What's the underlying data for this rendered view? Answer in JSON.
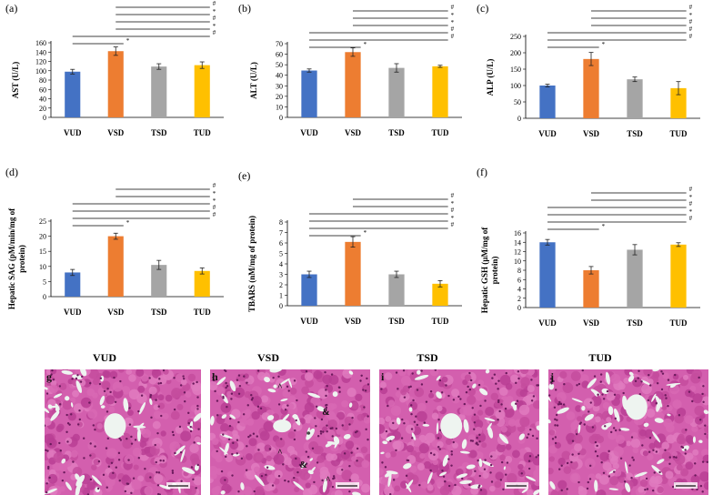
{
  "colors": {
    "VUD": "#4472c4",
    "VSD": "#ed7d31",
    "TSD": "#a5a5a5",
    "TUD": "#ffc000",
    "tissue": "#c2409a",
    "sinusoid": "#eef4f0"
  },
  "chart_data": [
    {
      "type": "bar",
      "panel": "(a)",
      "ylabel": "AST (U/L)",
      "categories": [
        "VUD",
        "VSD",
        "TSD",
        "TUD"
      ],
      "values": [
        98,
        142,
        109,
        112
      ],
      "errors": [
        5,
        9,
        6,
        7
      ],
      "ylim": [
        0,
        160
      ],
      "yticks": [
        "0",
        "20",
        "40",
        "60",
        "80",
        "100",
        "120",
        "140",
        "160"
      ],
      "significance": [
        {
          "from": 2,
          "to": 4,
          "mark": "#"
        },
        {
          "from": 2,
          "to": 4,
          "mark": "*"
        },
        {
          "from": 2,
          "to": 4,
          "mark": "#"
        },
        {
          "from": 2,
          "to": 4,
          "mark": "*"
        },
        {
          "from": 1,
          "to": 4,
          "mark": "#"
        },
        {
          "from": 1,
          "to": 2,
          "mark": "*"
        }
      ]
    },
    {
      "type": "bar",
      "panel": "(b)",
      "ylabel": "ALT (U/L)",
      "categories": [
        "VUD",
        "VSD",
        "TSD",
        "TUD"
      ],
      "values": [
        44.5,
        62,
        47,
        48.5
      ],
      "errors": [
        1.5,
        4,
        4,
        1
      ],
      "ylim": [
        0,
        70
      ],
      "yticks": [
        "0",
        "10",
        "20",
        "30",
        "40",
        "50",
        "60",
        "70"
      ],
      "significance": [
        {
          "from": 2,
          "to": 4,
          "mark": "#"
        },
        {
          "from": 2,
          "to": 4,
          "mark": "*"
        },
        {
          "from": 2,
          "to": 4,
          "mark": "*"
        },
        {
          "from": 1,
          "to": 4,
          "mark": "#"
        },
        {
          "from": 1,
          "to": 4,
          "mark": "#"
        },
        {
          "from": 1,
          "to": 2,
          "mark": "*"
        }
      ]
    },
    {
      "type": "bar",
      "panel": "(c)",
      "ylabel": "ALP (U/L)",
      "categories": [
        "VUD",
        "VSD",
        "TSD",
        "TUD"
      ],
      "values": [
        100,
        181,
        119,
        92
      ],
      "errors": [
        4,
        20,
        7,
        20
      ],
      "ylim": [
        0,
        250
      ],
      "yticks": [
        "0",
        "50",
        "100",
        "150",
        "200",
        "250"
      ],
      "significance": [
        {
          "from": 2,
          "to": 4,
          "mark": "#"
        },
        {
          "from": 2,
          "to": 4,
          "mark": "*"
        },
        {
          "from": 2,
          "to": 4,
          "mark": "#"
        },
        {
          "from": 1,
          "to": 4,
          "mark": "#"
        },
        {
          "from": 1,
          "to": 4,
          "mark": "#"
        },
        {
          "from": 1,
          "to": 2,
          "mark": "*"
        }
      ]
    },
    {
      "type": "bar",
      "panel": "(d)",
      "ylabel": "Hepatic SAG (pM/min/mg of protein)",
      "categories": [
        "VUD",
        "VSD",
        "TSD",
        "TUD"
      ],
      "values": [
        8,
        20,
        10.5,
        8.5
      ],
      "errors": [
        1,
        1,
        1.5,
        1
      ],
      "ylim": [
        0,
        25
      ],
      "yticks": [
        "0",
        "5",
        "10",
        "15",
        "20",
        "25"
      ],
      "significance": [
        {
          "from": 2,
          "to": 4,
          "mark": "#"
        },
        {
          "from": 2,
          "to": 4,
          "mark": "*"
        },
        {
          "from": 1,
          "to": 4,
          "mark": "*"
        },
        {
          "from": 1,
          "to": 4,
          "mark": "#"
        },
        {
          "from": 1,
          "to": 4,
          "mark": "#"
        },
        {
          "from": 1,
          "to": 2,
          "mark": "*"
        }
      ]
    },
    {
      "type": "bar",
      "panel": "(e)",
      "ylabel": "TBARS (nM/mg of protein)",
      "categories": [
        "VUD",
        "VSD",
        "TSD",
        "TUD"
      ],
      "values": [
        3,
        6.1,
        3,
        2.1
      ],
      "errors": [
        0.3,
        0.5,
        0.3,
        0.3
      ],
      "ylim": [
        0,
        8
      ],
      "yticks": [
        "0",
        "1",
        "2",
        "3",
        "4",
        "5",
        "6",
        "7",
        "8"
      ],
      "significance": [
        {
          "from": 2,
          "to": 4,
          "mark": "#"
        },
        {
          "from": 2,
          "to": 4,
          "mark": "*"
        },
        {
          "from": 1,
          "to": 4,
          "mark": "#"
        },
        {
          "from": 1,
          "to": 4,
          "mark": "*"
        },
        {
          "from": 1,
          "to": 4,
          "mark": "#"
        },
        {
          "from": 1,
          "to": 2,
          "mark": "*"
        }
      ]
    },
    {
      "type": "bar",
      "panel": "(f)",
      "ylabel": "Hepatic GSH (µM/mg of protein)",
      "categories": [
        "VUD",
        "VSD",
        "TSD",
        "TUD"
      ],
      "values": [
        14,
        8,
        12.4,
        13.5
      ],
      "errors": [
        0.6,
        0.8,
        1.1,
        0.4
      ],
      "ylim": [
        0,
        16
      ],
      "yticks": [
        "0",
        "2",
        "4",
        "6",
        "8",
        "10",
        "12",
        "14",
        "16"
      ],
      "significance": [
        {
          "from": 2,
          "to": 4,
          "mark": "#"
        },
        {
          "from": 2,
          "to": 4,
          "mark": "*"
        },
        {
          "from": 1,
          "to": 4,
          "mark": "#"
        },
        {
          "from": 1,
          "to": 4,
          "mark": "*"
        },
        {
          "from": 1,
          "to": 4,
          "mark": "#"
        },
        {
          "from": 1,
          "to": 2,
          "mark": "*"
        }
      ]
    }
  ],
  "histology": {
    "panels": [
      {
        "title": "VUD",
        "letter": "g",
        "marks": []
      },
      {
        "title": "VSD",
        "letter": "h",
        "marks": [
          "^",
          "&",
          "*",
          "&",
          "^",
          "^"
        ]
      },
      {
        "title": "TSD",
        "letter": "i",
        "marks": []
      },
      {
        "title": "TUD",
        "letter": "j",
        "marks": []
      }
    ]
  }
}
